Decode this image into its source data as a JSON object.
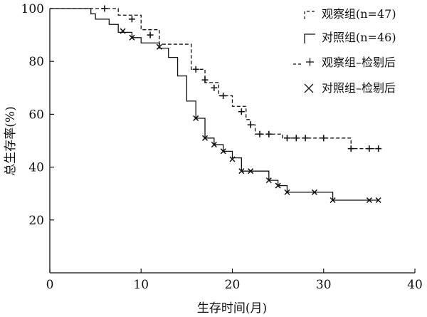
{
  "chart_data": {
    "type": "line",
    "subtype": "kaplan-meier survival curve",
    "xlabel": "生存时间(月)",
    "ylabel": "总生存率(%)",
    "xlim": [
      0,
      40
    ],
    "ylim": [
      0,
      100
    ],
    "xticks": [
      0,
      10,
      20,
      30,
      40
    ],
    "yticks": [
      20,
      40,
      60,
      80,
      100
    ],
    "x_tick_labels": [
      "0",
      "10",
      "20",
      "30",
      "40"
    ],
    "y_tick_labels": [
      "20",
      "40",
      "60",
      "80",
      "100"
    ],
    "grid": false,
    "legend_position": "top-right",
    "series": [
      {
        "name": "观察组(n=47)",
        "line_style": "dashed",
        "censor_marker": "plus",
        "censor_legend": "观察组–检剔后",
        "steps": [
          [
            0,
            100
          ],
          [
            7.5,
            97.5
          ],
          [
            10,
            92
          ],
          [
            12,
            86.5
          ],
          [
            15.5,
            77
          ],
          [
            17,
            72
          ],
          [
            18.5,
            67
          ],
          [
            20,
            63
          ],
          [
            21.5,
            58
          ],
          [
            22,
            56
          ],
          [
            22.5,
            52.5
          ],
          [
            25.5,
            51
          ],
          [
            33,
            47
          ],
          [
            36,
            47
          ]
        ],
        "censored": [
          [
            6,
            100
          ],
          [
            9,
            96
          ],
          [
            11,
            90
          ],
          [
            16,
            77
          ],
          [
            17,
            73
          ],
          [
            18,
            70
          ],
          [
            19,
            67
          ],
          [
            21,
            61
          ],
          [
            22,
            56
          ],
          [
            23,
            52.5
          ],
          [
            24,
            52.5
          ],
          [
            26,
            51
          ],
          [
            27,
            51
          ],
          [
            28,
            51
          ],
          [
            30,
            51
          ],
          [
            33,
            47
          ],
          [
            35,
            47
          ],
          [
            36,
            47
          ]
        ]
      },
      {
        "name": "对照组(n=46)",
        "line_style": "solid",
        "censor_marker": "cross",
        "censor_legend": "对照组–检剔后",
        "steps": [
          [
            0,
            100
          ],
          [
            4.5,
            98
          ],
          [
            5,
            96
          ],
          [
            6.5,
            94
          ],
          [
            7.5,
            91
          ],
          [
            9,
            89
          ],
          [
            10,
            87
          ],
          [
            12,
            85
          ],
          [
            13,
            81.5
          ],
          [
            14,
            74.5
          ],
          [
            15,
            65
          ],
          [
            16,
            58.5
          ],
          [
            17,
            51
          ],
          [
            18,
            48.5
          ],
          [
            19,
            46
          ],
          [
            20,
            43.5
          ],
          [
            21,
            38.5
          ],
          [
            24,
            35
          ],
          [
            25,
            33
          ],
          [
            26,
            30.5
          ],
          [
            31,
            27.5
          ],
          [
            36,
            27.5
          ]
        ],
        "censored": [
          [
            8,
            91.5
          ],
          [
            9,
            89
          ],
          [
            12,
            85.5
          ],
          [
            16,
            58.5
          ],
          [
            17,
            51
          ],
          [
            18,
            48.5
          ],
          [
            19,
            46
          ],
          [
            20,
            43
          ],
          [
            21,
            38.5
          ],
          [
            22,
            38.5
          ],
          [
            24,
            35
          ],
          [
            25,
            33
          ],
          [
            26,
            30.5
          ],
          [
            29,
            30.5
          ],
          [
            31,
            27.5
          ],
          [
            35,
            27.5
          ],
          [
            36,
            27.5
          ]
        ]
      }
    ]
  }
}
